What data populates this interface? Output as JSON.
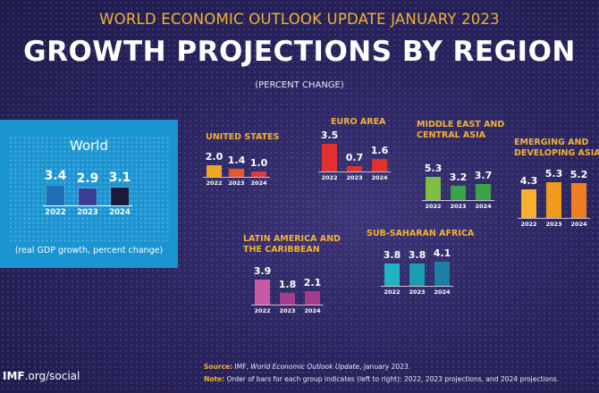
{
  "header": {
    "subtitle": "WORLD ECONOMIC OUTLOOK UPDATE JANUARY 2023",
    "title": "GROWTH PROJECTIONS BY REGION",
    "unit": "(PERCENT CHANGE)"
  },
  "world": {
    "title": "World",
    "note": "(real GDP growth, percent change)"
  },
  "footer": {
    "source_label": "Source:",
    "source_text": "IMF, ",
    "source_italic": "World Economic Outlook Update",
    "source_tail": ", January 2023.",
    "note_label": "Note:",
    "note_text": "Order of bars for each group indicates (left to right): 2022, 2023 projections, and 2024 projections."
  },
  "logo": {
    "bold": "IMF",
    "rest": ".org/social"
  },
  "colors": {
    "accent": "#f3b233",
    "world_bg": "#1b94d2",
    "background": "#2b2560"
  },
  "chart_data": [
    {
      "type": "bar",
      "title": "World",
      "categories": [
        "2022",
        "2023",
        "2024"
      ],
      "values": [
        3.4,
        2.9,
        3.1
      ],
      "colors": [
        "#1e6fb6",
        "#3b3f94",
        "#1b1a3a"
      ]
    },
    {
      "type": "bar",
      "title": "UNITED STATES",
      "categories": [
        "2022",
        "2023",
        "2024"
      ],
      "values": [
        2.0,
        1.4,
        1.0
      ],
      "colors": [
        "#f2a51f",
        "#e8552b",
        "#e03a3a"
      ]
    },
    {
      "type": "bar",
      "title": "EURO AREA",
      "categories": [
        "2022",
        "2023",
        "2024"
      ],
      "values": [
        3.5,
        0.7,
        1.6
      ],
      "colors": [
        "#e0312f",
        "#e0312f",
        "#e0312f"
      ]
    },
    {
      "type": "bar",
      "title": "MIDDLE EAST AND CENTRAL ASIA",
      "categories": [
        "2022",
        "2023",
        "2024"
      ],
      "values": [
        5.3,
        3.2,
        3.7
      ],
      "colors": [
        "#7ebf43",
        "#3aa347",
        "#3aa347"
      ]
    },
    {
      "type": "bar",
      "title": "EMERGING AND DEVELOPING ASIA",
      "categories": [
        "2022",
        "2023",
        "2024"
      ],
      "values": [
        4.3,
        5.3,
        5.2
      ],
      "colors": [
        "#f6b02b",
        "#f29a1d",
        "#ef7d22"
      ]
    },
    {
      "type": "bar",
      "title": "LATIN AMERICA AND THE CARIBBEAN",
      "categories": [
        "2022",
        "2023",
        "2024"
      ],
      "values": [
        3.9,
        1.8,
        2.1
      ],
      "colors": [
        "#c75aa6",
        "#a33c8e",
        "#a33c8e"
      ]
    },
    {
      "type": "bar",
      "title": "SUB-SAHARAN AFRICA",
      "categories": [
        "2022",
        "2023",
        "2024"
      ],
      "values": [
        3.8,
        3.8,
        4.1
      ],
      "colors": [
        "#1fb3c3",
        "#1a9db3",
        "#1d7ea8"
      ]
    }
  ]
}
